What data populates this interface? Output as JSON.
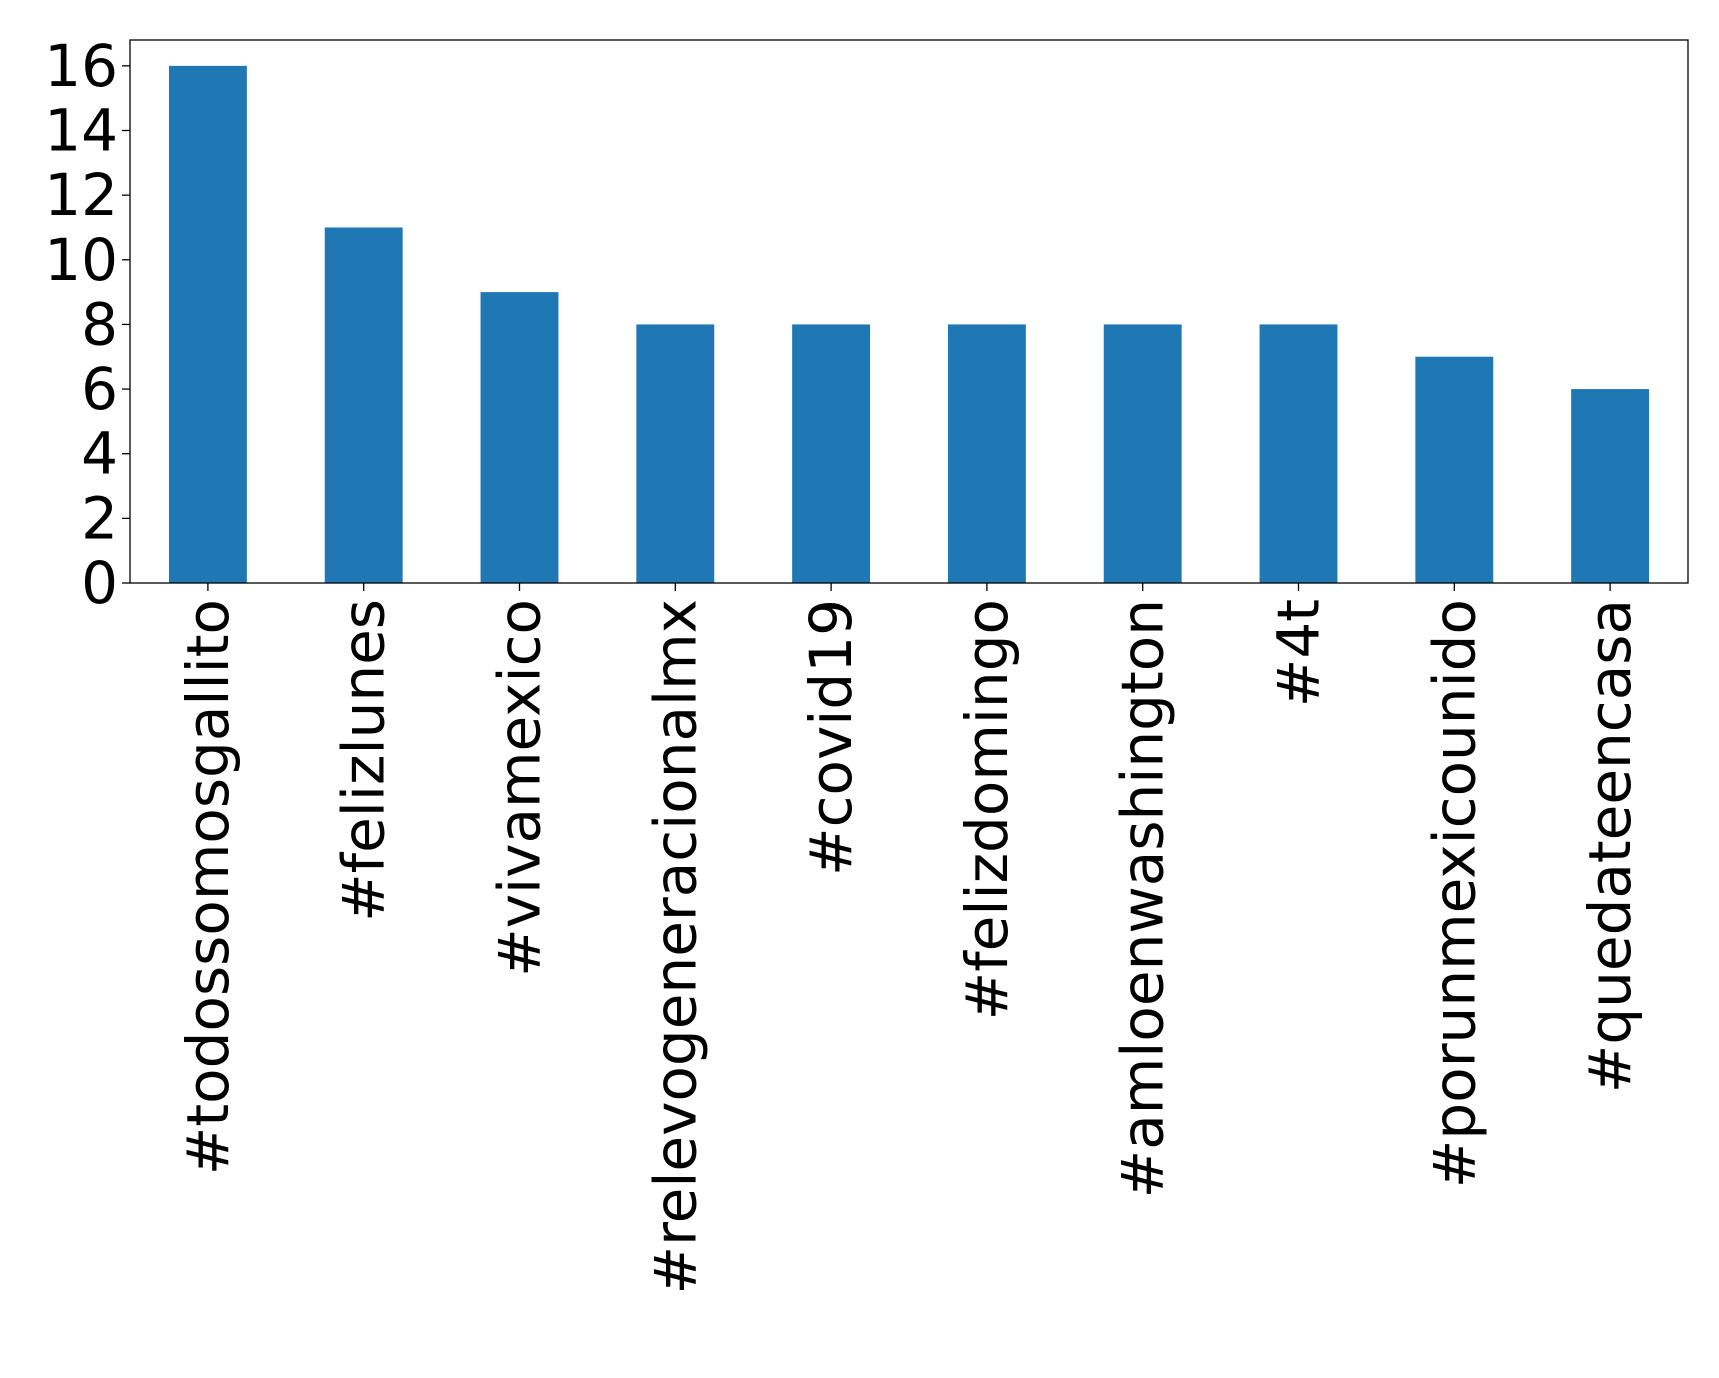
{
  "chart_data": {
    "type": "bar",
    "categories": [
      "#todossomosgallito",
      "#felizlunes",
      "#vivamexico",
      "#relevogeneracionalmx",
      "#covid19",
      "#felizdomingo",
      "#amloenwashington",
      "#4t",
      "#porunmexicounido",
      "#quedateencasa"
    ],
    "values": [
      16,
      11,
      9,
      8,
      8,
      8,
      8,
      8,
      7,
      6
    ],
    "title": "",
    "xlabel": "",
    "ylabel": "",
    "ylim": [
      0,
      16.8
    ],
    "yticks": [
      0,
      2,
      4,
      6,
      8,
      10,
      12,
      14,
      16
    ],
    "grid": false,
    "legend": "none",
    "bar_color": "#1f77b4"
  }
}
